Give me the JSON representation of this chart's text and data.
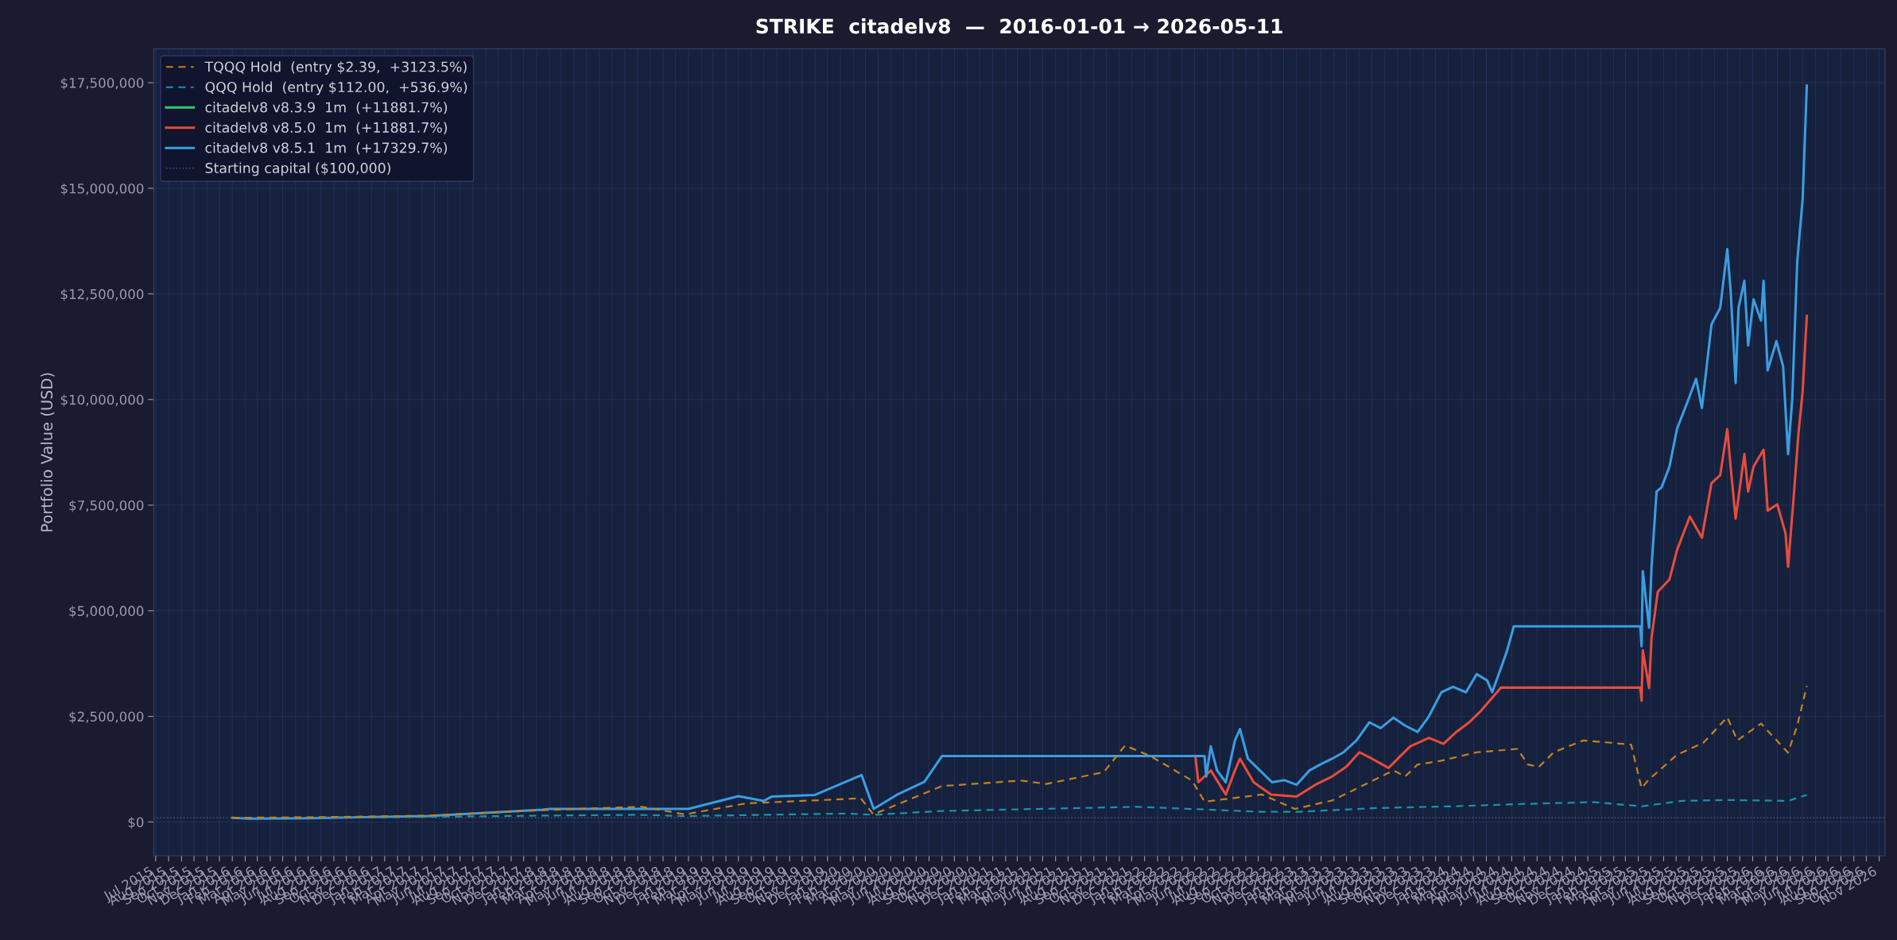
{
  "chart_data": {
    "type": "line",
    "title": "STRIKE  citadelv8  —  2016-01-01 → 2026-05-11",
    "ylabel": "Portfolio Value (USD)",
    "xlim": [
      "2015-06-26",
      "2026-11-15"
    ],
    "ylim": [
      -800000,
      18300000
    ],
    "yticks": [
      {
        "value": 0,
        "label": "$0"
      },
      {
        "value": 2500000,
        "label": "$2,500,000"
      },
      {
        "value": 5000000,
        "label": "$5,000,000"
      },
      {
        "value": 7500000,
        "label": "$7,500,000"
      },
      {
        "value": 10000000,
        "label": "$10,000,000"
      },
      {
        "value": 12500000,
        "label": "$12,500,000"
      },
      {
        "value": 15000000,
        "label": "$15,000,000"
      },
      {
        "value": 17500000,
        "label": "$17,500,000"
      }
    ],
    "xticks": [
      {
        "value": "2015-07-01",
        "label": "Jul 2015"
      },
      {
        "value": "2015-08-01",
        "label": "Aug 2015"
      },
      {
        "value": "2015-09-01",
        "label": "Sep 2015"
      },
      {
        "value": "2015-10-01",
        "label": "Oct 2015"
      },
      {
        "value": "2015-11-01",
        "label": "Nov 2015"
      },
      {
        "value": "2015-12-01",
        "label": "Dec 2015"
      },
      {
        "value": "2016-01-01",
        "label": "Jan 2016"
      },
      {
        "value": "2016-02-01",
        "label": "Feb 2016"
      },
      {
        "value": "2016-03-01",
        "label": "Mar 2016"
      },
      {
        "value": "2016-04-01",
        "label": "Apr 2016"
      },
      {
        "value": "2016-05-01",
        "label": "May 2016"
      },
      {
        "value": "2016-06-01",
        "label": "Jun 2016"
      },
      {
        "value": "2016-07-01",
        "label": "Jul 2016"
      },
      {
        "value": "2016-08-01",
        "label": "Aug 2016"
      },
      {
        "value": "2016-09-01",
        "label": "Sep 2016"
      },
      {
        "value": "2016-10-01",
        "label": "Oct 2016"
      },
      {
        "value": "2016-11-01",
        "label": "Nov 2016"
      },
      {
        "value": "2016-12-01",
        "label": "Dec 2016"
      },
      {
        "value": "2017-01-01",
        "label": "Jan 2017"
      },
      {
        "value": "2017-02-01",
        "label": "Feb 2017"
      },
      {
        "value": "2017-03-01",
        "label": "Mar 2017"
      },
      {
        "value": "2017-04-01",
        "label": "Apr 2017"
      },
      {
        "value": "2017-05-01",
        "label": "May 2017"
      },
      {
        "value": "2017-06-01",
        "label": "Jun 2017"
      },
      {
        "value": "2017-07-01",
        "label": "Jul 2017"
      },
      {
        "value": "2017-08-01",
        "label": "Aug 2017"
      },
      {
        "value": "2017-09-01",
        "label": "Sep 2017"
      },
      {
        "value": "2017-10-01",
        "label": "Oct 2017"
      },
      {
        "value": "2017-11-01",
        "label": "Nov 2017"
      },
      {
        "value": "2017-12-01",
        "label": "Dec 2017"
      },
      {
        "value": "2018-01-01",
        "label": "Jan 2018"
      },
      {
        "value": "2018-02-01",
        "label": "Feb 2018"
      },
      {
        "value": "2018-03-01",
        "label": "Mar 2018"
      },
      {
        "value": "2018-04-01",
        "label": "Apr 2018"
      },
      {
        "value": "2018-05-01",
        "label": "May 2018"
      },
      {
        "value": "2018-06-01",
        "label": "Jun 2018"
      },
      {
        "value": "2018-07-01",
        "label": "Jul 2018"
      },
      {
        "value": "2018-08-01",
        "label": "Aug 2018"
      },
      {
        "value": "2018-09-01",
        "label": "Sep 2018"
      },
      {
        "value": "2018-10-01",
        "label": "Oct 2018"
      },
      {
        "value": "2018-11-01",
        "label": "Nov 2018"
      },
      {
        "value": "2018-12-01",
        "label": "Dec 2018"
      },
      {
        "value": "2019-01-01",
        "label": "Jan 2019"
      },
      {
        "value": "2019-02-01",
        "label": "Feb 2019"
      },
      {
        "value": "2019-03-01",
        "label": "Mar 2019"
      },
      {
        "value": "2019-04-01",
        "label": "Apr 2019"
      },
      {
        "value": "2019-05-01",
        "label": "May 2019"
      },
      {
        "value": "2019-06-01",
        "label": "Jun 2019"
      },
      {
        "value": "2019-07-01",
        "label": "Jul 2019"
      },
      {
        "value": "2019-08-01",
        "label": "Aug 2019"
      },
      {
        "value": "2019-09-01",
        "label": "Sep 2019"
      },
      {
        "value": "2019-10-01",
        "label": "Oct 2019"
      },
      {
        "value": "2019-11-01",
        "label": "Nov 2019"
      },
      {
        "value": "2019-12-01",
        "label": "Dec 2019"
      },
      {
        "value": "2020-01-01",
        "label": "Jan 2020"
      },
      {
        "value": "2020-02-01",
        "label": "Feb 2020"
      },
      {
        "value": "2020-03-01",
        "label": "Mar 2020"
      },
      {
        "value": "2020-04-01",
        "label": "Apr 2020"
      },
      {
        "value": "2020-05-01",
        "label": "May 2020"
      },
      {
        "value": "2020-06-01",
        "label": "Jun 2020"
      },
      {
        "value": "2020-07-01",
        "label": "Jul 2020"
      },
      {
        "value": "2020-08-01",
        "label": "Aug 2020"
      },
      {
        "value": "2020-09-01",
        "label": "Sep 2020"
      },
      {
        "value": "2020-10-01",
        "label": "Oct 2020"
      },
      {
        "value": "2020-11-01",
        "label": "Nov 2020"
      },
      {
        "value": "2020-12-01",
        "label": "Dec 2020"
      },
      {
        "value": "2021-01-01",
        "label": "Jan 2021"
      },
      {
        "value": "2021-02-01",
        "label": "Feb 2021"
      },
      {
        "value": "2021-03-01",
        "label": "Mar 2021"
      },
      {
        "value": "2021-04-01",
        "label": "Apr 2021"
      },
      {
        "value": "2021-05-01",
        "label": "May 2021"
      },
      {
        "value": "2021-06-01",
        "label": "Jun 2021"
      },
      {
        "value": "2021-07-01",
        "label": "Jul 2021"
      },
      {
        "value": "2021-08-01",
        "label": "Aug 2021"
      },
      {
        "value": "2021-09-01",
        "label": "Sep 2021"
      },
      {
        "value": "2021-10-01",
        "label": "Oct 2021"
      },
      {
        "value": "2021-11-01",
        "label": "Nov 2021"
      },
      {
        "value": "2021-12-01",
        "label": "Dec 2021"
      },
      {
        "value": "2022-01-01",
        "label": "Jan 2022"
      },
      {
        "value": "2022-02-01",
        "label": "Feb 2022"
      },
      {
        "value": "2022-03-01",
        "label": "Mar 2022"
      },
      {
        "value": "2022-04-01",
        "label": "Apr 2022"
      },
      {
        "value": "2022-05-01",
        "label": "May 2022"
      },
      {
        "value": "2022-06-01",
        "label": "Jun 2022"
      },
      {
        "value": "2022-07-01",
        "label": "Jul 2022"
      },
      {
        "value": "2022-08-01",
        "label": "Aug 2022"
      },
      {
        "value": "2022-09-01",
        "label": "Sep 2022"
      },
      {
        "value": "2022-10-01",
        "label": "Oct 2022"
      },
      {
        "value": "2022-11-01",
        "label": "Nov 2022"
      },
      {
        "value": "2022-12-01",
        "label": "Dec 2022"
      },
      {
        "value": "2023-01-01",
        "label": "Jan 2023"
      },
      {
        "value": "2023-02-01",
        "label": "Feb 2023"
      },
      {
        "value": "2023-03-01",
        "label": "Mar 2023"
      },
      {
        "value": "2023-04-01",
        "label": "Apr 2023"
      },
      {
        "value": "2023-05-01",
        "label": "May 2023"
      },
      {
        "value": "2023-06-01",
        "label": "Jun 2023"
      },
      {
        "value": "2023-07-01",
        "label": "Jul 2023"
      },
      {
        "value": "2023-08-01",
        "label": "Aug 2023"
      },
      {
        "value": "2023-09-01",
        "label": "Sep 2023"
      },
      {
        "value": "2023-10-01",
        "label": "Oct 2023"
      },
      {
        "value": "2023-11-01",
        "label": "Nov 2023"
      },
      {
        "value": "2023-12-01",
        "label": "Dec 2023"
      },
      {
        "value": "2024-01-01",
        "label": "Jan 2024"
      },
      {
        "value": "2024-02-01",
        "label": "Feb 2024"
      },
      {
        "value": "2024-03-01",
        "label": "Mar 2024"
      },
      {
        "value": "2024-04-01",
        "label": "Apr 2024"
      },
      {
        "value": "2024-05-01",
        "label": "May 2024"
      },
      {
        "value": "2024-06-01",
        "label": "Jun 2024"
      },
      {
        "value": "2024-07-01",
        "label": "Jul 2024"
      },
      {
        "value": "2024-08-01",
        "label": "Aug 2024"
      },
      {
        "value": "2024-09-01",
        "label": "Sep 2024"
      },
      {
        "value": "2024-10-01",
        "label": "Oct 2024"
      },
      {
        "value": "2024-11-01",
        "label": "Nov 2024"
      },
      {
        "value": "2024-12-01",
        "label": "Dec 2024"
      },
      {
        "value": "2025-01-01",
        "label": "Jan 2025"
      },
      {
        "value": "2025-02-01",
        "label": "Feb 2025"
      },
      {
        "value": "2025-03-01",
        "label": "Mar 2025"
      },
      {
        "value": "2025-04-01",
        "label": "Apr 2025"
      },
      {
        "value": "2025-05-01",
        "label": "May 2025"
      },
      {
        "value": "2025-06-01",
        "label": "Jun 2025"
      },
      {
        "value": "2025-07-01",
        "label": "Jul 2025"
      },
      {
        "value": "2025-08-01",
        "label": "Aug 2025"
      },
      {
        "value": "2025-09-01",
        "label": "Sep 2025"
      },
      {
        "value": "2025-10-01",
        "label": "Oct 2025"
      },
      {
        "value": "2025-11-01",
        "label": "Nov 2025"
      },
      {
        "value": "2025-12-01",
        "label": "Dec 2025"
      },
      {
        "value": "2026-01-01",
        "label": "Jan 2026"
      },
      {
        "value": "2026-02-01",
        "label": "Feb 2026"
      },
      {
        "value": "2026-03-01",
        "label": "Mar 2026"
      },
      {
        "value": "2026-04-01",
        "label": "Apr 2026"
      },
      {
        "value": "2026-05-01",
        "label": "May 2026"
      },
      {
        "value": "2026-06-01",
        "label": "Jun 2026"
      },
      {
        "value": "2026-07-01",
        "label": "Jul 2026"
      },
      {
        "value": "2026-08-01",
        "label": "Aug 2026"
      },
      {
        "value": "2026-09-01",
        "label": "Sep 2026"
      },
      {
        "value": "2026-10-01",
        "label": "Oct 2026"
      },
      {
        "value": "2026-11-01",
        "label": "Nov 2026"
      }
    ],
    "grid": true,
    "legend": "top left",
    "series": [
      {
        "name": "TQQQ Hold  (entry $2.39,  +3123.5%)",
        "color": "#c5821c",
        "line_style": "dashed",
        "x": [
          "2016-01-01",
          "2016-07-01",
          "2017-04-15",
          "2018-01-15",
          "2018-09-10",
          "2018-12-24",
          "2019-05-20",
          "2020-02-19",
          "2020-03-20",
          "2020-09-01",
          "2021-03-10",
          "2021-05-10",
          "2021-09-25",
          "2021-11-15",
          "2022-01-15",
          "2022-04-25",
          "2022-05-25",
          "2022-10-10",
          "2022-12-28",
          "2023-03-28",
          "2023-06-25",
          "2023-08-22",
          "2023-09-19",
          "2023-10-19",
          "2023-12-15",
          "2024-03-09",
          "2024-06-15",
          "2024-07-10",
          "2024-08-05",
          "2024-09-10",
          "2024-11-20",
          "2025-01-20",
          "2025-03-15",
          "2025-04-09",
          "2025-04-25",
          "2025-07-03",
          "2025-09-05",
          "2025-11-01",
          "2025-11-25",
          "2026-01-21",
          "2026-03-27",
          "2026-04-18",
          "2026-05-11"
        ],
        "values": [
          100000,
          110000,
          150000,
          280000,
          360000,
          180000,
          440000,
          560000,
          180000,
          850000,
          980000,
          900000,
          1180000,
          1810000,
          1560000,
          980000,
          480000,
          650000,
          310000,
          510000,
          940000,
          1220000,
          1080000,
          1360000,
          1450000,
          1650000,
          1730000,
          1360000,
          1300000,
          1650000,
          1930000,
          1880000,
          1830000,
          800000,
          990000,
          1590000,
          1880000,
          2480000,
          1930000,
          2330000,
          1640000,
          2280000,
          3220000
        ]
      },
      {
        "name": "QQQ Hold  (entry $112.00,  +536.9%)",
        "color": "#1795a8",
        "line_style": "dashed",
        "x": [
          "2016-01-01",
          "2017-01-01",
          "2018-01-01",
          "2018-09-01",
          "2018-12-24",
          "2020-01-15",
          "2020-03-20",
          "2020-09-01",
          "2021-12-15",
          "2022-10-10",
          "2023-01-05",
          "2023-07-15",
          "2024-01-05",
          "2024-07-10",
          "2024-12-15",
          "2025-04-09",
          "2025-07-15",
          "2025-11-01",
          "2026-03-27",
          "2026-05-11"
        ],
        "values": [
          100000,
          110000,
          150000,
          170000,
          140000,
          200000,
          170000,
          260000,
          360000,
          240000,
          240000,
          330000,
          370000,
          430000,
          470000,
          370000,
          500000,
          520000,
          500000,
          640000
        ]
      },
      {
        "name": "citadelv8 v8.3.9  1m  (+11881.7%)",
        "color": "#2ecc71",
        "line_style": "solid"
      },
      {
        "name": "citadelv8 v8.5.0  1m  (+11881.7%)",
        "color": "#e74c3c",
        "line_style": "solid",
        "x": [
          "2022-05-03",
          "2022-05-10",
          "2022-06-09",
          "2022-07-15",
          "2022-08-06",
          "2022-08-18",
          "2022-09-20",
          "2022-11-01",
          "2023-01-01",
          "2023-02-15",
          "2023-03-28",
          "2023-05-01",
          "2023-06-01",
          "2023-07-01",
          "2023-08-10",
          "2023-10-01",
          "2023-11-15",
          "2023-12-20",
          "2024-01-20",
          "2024-02-20",
          "2024-03-20",
          "2024-05-06",
          "2024-06-06",
          "2025-04-06",
          "2025-04-09",
          "2025-04-12",
          "2025-04-27",
          "2025-05-03",
          "2025-05-18",
          "2025-06-15",
          "2025-07-03",
          "2025-08-03",
          "2025-09-01",
          "2025-09-24",
          "2025-10-15",
          "2025-11-01",
          "2025-11-09",
          "2025-11-21",
          "2025-12-12",
          "2025-12-21",
          "2026-01-03",
          "2026-01-27",
          "2026-02-06",
          "2026-03-01",
          "2026-03-21",
          "2026-03-27",
          "2026-04-09",
          "2026-04-21",
          "2026-05-01",
          "2026-05-11"
        ],
        "values": [
          1560000,
          940000,
          1220000,
          650000,
          1220000,
          1500000,
          940000,
          650000,
          600000,
          880000,
          1080000,
          1310000,
          1650000,
          1500000,
          1280000,
          1790000,
          1990000,
          1850000,
          2130000,
          2360000,
          2640000,
          3180000,
          3180000,
          3180000,
          2870000,
          4060000,
          3170000,
          4360000,
          5450000,
          5740000,
          6430000,
          7230000,
          6730000,
          8020000,
          8210000,
          9300000,
          8410000,
          7180000,
          8710000,
          7820000,
          8410000,
          8810000,
          7370000,
          7520000,
          6830000,
          6040000,
          7630000,
          9200000,
          10190000,
          11980000
        ]
      },
      {
        "name": "citadelv8 v8.5.1  1m  (+17329.7%)",
        "color": "#3a9ee0",
        "line_style": "solid",
        "x": [
          "2016-01-01",
          "2016-02-10",
          "2016-07-01",
          "2017-04-15",
          "2018-01-15",
          "2018-02-01",
          "2019-01-01",
          "2019-05-01",
          "2019-07-01",
          "2019-07-20",
          "2019-11-01",
          "2020-02-21",
          "2020-03-21",
          "2020-05-15",
          "2020-07-21",
          "2020-09-01",
          "2022-05-25",
          "2022-05-29",
          "2022-06-09",
          "2022-06-24",
          "2022-07-15",
          "2022-08-06",
          "2022-08-18",
          "2022-09-06",
          "2022-10-05",
          "2022-11-03",
          "2022-12-03",
          "2023-01-01",
          "2023-02-01",
          "2023-02-27",
          "2023-03-28",
          "2023-04-24",
          "2023-05-25",
          "2023-06-25",
          "2023-07-22",
          "2023-08-22",
          "2023-09-19",
          "2023-10-19",
          "2023-11-15",
          "2023-12-15",
          "2024-01-12",
          "2024-02-12",
          "2024-03-09",
          "2024-04-03",
          "2024-04-15",
          "2024-05-06",
          "2024-05-21",
          "2024-06-06",
          "2025-04-06",
          "2025-04-09",
          "2025-04-12",
          "2025-04-27",
          "2025-05-03",
          "2025-05-15",
          "2025-05-27",
          "2025-06-15",
          "2025-07-03",
          "2025-08-03",
          "2025-08-18",
          "2025-09-01",
          "2025-09-24",
          "2025-10-15",
          "2025-11-01",
          "2025-11-09",
          "2025-11-21",
          "2025-11-28",
          "2025-12-12",
          "2025-12-21",
          "2026-01-03",
          "2026-01-21",
          "2026-01-27",
          "2026-02-06",
          "2026-02-27",
          "2026-03-15",
          "2026-03-27",
          "2026-04-06",
          "2026-04-18",
          "2026-05-01",
          "2026-05-11"
        ],
        "values": [
          100000,
          80000,
          90000,
          140000,
          290000,
          310000,
          310000,
          610000,
          500000,
          600000,
          640000,
          1110000,
          310000,
          640000,
          950000,
          1560000,
          1560000,
          1080000,
          1790000,
          1220000,
          940000,
          1930000,
          2200000,
          1500000,
          1220000,
          940000,
          990000,
          880000,
          1220000,
          1360000,
          1500000,
          1650000,
          1930000,
          2360000,
          2220000,
          2470000,
          2280000,
          2130000,
          2500000,
          3070000,
          3200000,
          3070000,
          3500000,
          3350000,
          3070000,
          3640000,
          4060000,
          4630000,
          4630000,
          4160000,
          5940000,
          4600000,
          6040000,
          7820000,
          7920000,
          8410000,
          9300000,
          10090000,
          10490000,
          9800000,
          11780000,
          12170000,
          13560000,
          12570000,
          10390000,
          12170000,
          12810000,
          11280000,
          12370000,
          11870000,
          12810000,
          10690000,
          11380000,
          10790000,
          8710000,
          10000000,
          13260000,
          14740000,
          17430000
        ]
      }
    ],
    "ref_lines": [
      {
        "axis": "y",
        "value": 100000,
        "label": "Starting capital ($100,000)",
        "color": "#5c6488",
        "line_style": "dotted"
      }
    ]
  }
}
